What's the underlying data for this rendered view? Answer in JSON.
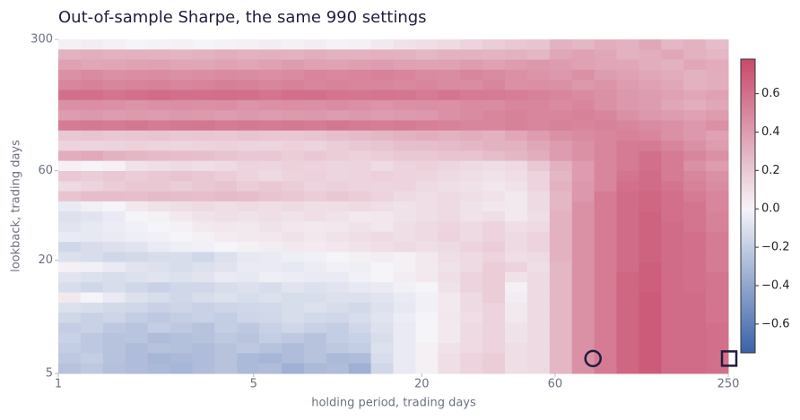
{
  "chart_data": {
    "type": "heatmap",
    "title": "Out-of-sample Sharpe, the same 990 settings",
    "x_label": "holding period, trading days",
    "y_label": "lookback, trading days",
    "xlim": [
      1,
      250
    ],
    "ylim": [
      300,
      5
    ],
    "log_x": true,
    "log_y": true,
    "xticks": [
      1,
      5,
      20,
      60,
      250
    ],
    "yticks": [
      5,
      20,
      60,
      300
    ],
    "zlim": [
      -0.75,
      0.78
    ],
    "cmap": [
      "#3a62a8",
      "#f5f4f8",
      "#c7496a"
    ],
    "colorbar_ticks": [
      {
        "value": -0.6,
        "label": "−0.6"
      },
      {
        "value": -0.4,
        "label": "−0.4"
      },
      {
        "value": -0.2,
        "label": "−0.2"
      },
      {
        "value": 0,
        "label": "0.0"
      },
      {
        "value": 0.2,
        "label": "0.2"
      },
      {
        "value": 0.4,
        "label": "0.4"
      },
      {
        "value": 0.6,
        "label": "0.6"
      }
    ],
    "markers": [
      {
        "x": 82,
        "y": 6,
        "shape": "circle",
        "color": "#1e1e3c"
      },
      {
        "x": 250,
        "y": 6,
        "shape": "square",
        "color": "#1e1e3c"
      }
    ],
    "z": [
      [
        0.02,
        0.03,
        0.02,
        0.0,
        0.01,
        0.02,
        0.0,
        0.01,
        0.02,
        0.03,
        0.02,
        0.03,
        0.01,
        0.02,
        0.05,
        0.08,
        0.1,
        0.12,
        0.15,
        0.18,
        0.2,
        0.22,
        0.3,
        0.28,
        0.32,
        0.3,
        0.35,
        0.28,
        0.3,
        0.25
      ],
      [
        0.3,
        0.32,
        0.3,
        0.31,
        0.3,
        0.29,
        0.3,
        0.32,
        0.3,
        0.31,
        0.3,
        0.32,
        0.3,
        0.3,
        0.31,
        0.3,
        0.28,
        0.3,
        0.3,
        0.29,
        0.3,
        0.28,
        0.35,
        0.38,
        0.35,
        0.3,
        0.32,
        0.35,
        0.3,
        0.28
      ],
      [
        0.38,
        0.35,
        0.36,
        0.37,
        0.38,
        0.36,
        0.35,
        0.37,
        0.36,
        0.38,
        0.4,
        0.38,
        0.37,
        0.39,
        0.4,
        0.38,
        0.37,
        0.38,
        0.4,
        0.38,
        0.4,
        0.42,
        0.4,
        0.38,
        0.36,
        0.35,
        0.32,
        0.3,
        0.35,
        0.33
      ],
      [
        0.45,
        0.48,
        0.45,
        0.46,
        0.47,
        0.45,
        0.46,
        0.48,
        0.47,
        0.46,
        0.48,
        0.5,
        0.49,
        0.5,
        0.52,
        0.5,
        0.48,
        0.47,
        0.5,
        0.48,
        0.45,
        0.44,
        0.42,
        0.45,
        0.4,
        0.38,
        0.35,
        0.33,
        0.3,
        0.32
      ],
      [
        0.5,
        0.52,
        0.5,
        0.51,
        0.52,
        0.5,
        0.51,
        0.53,
        0.52,
        0.5,
        0.52,
        0.5,
        0.51,
        0.5,
        0.5,
        0.49,
        0.5,
        0.48,
        0.47,
        0.5,
        0.45,
        0.46,
        0.45,
        0.42,
        0.44,
        0.4,
        0.38,
        0.35,
        0.3,
        0.32
      ],
      [
        0.6,
        0.6,
        0.58,
        0.6,
        0.62,
        0.6,
        0.6,
        0.61,
        0.6,
        0.58,
        0.6,
        0.6,
        0.58,
        0.57,
        0.58,
        0.57,
        0.55,
        0.58,
        0.55,
        0.55,
        0.54,
        0.52,
        0.5,
        0.48,
        0.45,
        0.42,
        0.4,
        0.38,
        0.35,
        0.38
      ],
      [
        0.45,
        0.46,
        0.45,
        0.44,
        0.45,
        0.46,
        0.45,
        0.46,
        0.44,
        0.45,
        0.46,
        0.45,
        0.47,
        0.45,
        0.44,
        0.45,
        0.46,
        0.45,
        0.48,
        0.47,
        0.5,
        0.5,
        0.48,
        0.5,
        0.45,
        0.42,
        0.4,
        0.35,
        0.32,
        0.35
      ],
      [
        0.4,
        0.42,
        0.4,
        0.41,
        0.4,
        0.42,
        0.41,
        0.4,
        0.42,
        0.4,
        0.41,
        0.42,
        0.4,
        0.42,
        0.4,
        0.41,
        0.42,
        0.45,
        0.48,
        0.5,
        0.52,
        0.5,
        0.5,
        0.52,
        0.5,
        0.45,
        0.42,
        0.4,
        0.38,
        0.4
      ],
      [
        0.55,
        0.56,
        0.55,
        0.57,
        0.55,
        0.56,
        0.57,
        0.55,
        0.56,
        0.55,
        0.56,
        0.55,
        0.57,
        0.55,
        0.54,
        0.55,
        0.53,
        0.52,
        0.5,
        0.5,
        0.52,
        0.5,
        0.52,
        0.5,
        0.52,
        0.5,
        0.48,
        0.45,
        0.42,
        0.45
      ],
      [
        0.2,
        0.22,
        0.2,
        0.21,
        0.22,
        0.2,
        0.21,
        0.2,
        0.22,
        0.21,
        0.2,
        0.22,
        0.24,
        0.26,
        0.28,
        0.3,
        0.32,
        0.3,
        0.32,
        0.3,
        0.35,
        0.4,
        0.45,
        0.48,
        0.5,
        0.52,
        0.5,
        0.45,
        0.42,
        0.38
      ],
      [
        0.15,
        0.14,
        0.15,
        0.16,
        0.15,
        0.14,
        0.15,
        0.16,
        0.15,
        0.14,
        0.16,
        0.15,
        0.18,
        0.2,
        0.22,
        0.24,
        0.25,
        0.26,
        0.28,
        0.3,
        0.3,
        0.35,
        0.4,
        0.45,
        0.5,
        0.55,
        0.55,
        0.5,
        0.45,
        0.4
      ],
      [
        0.32,
        0.34,
        0.3,
        0.28,
        0.26,
        0.25,
        0.24,
        0.22,
        0.2,
        0.2,
        0.18,
        0.2,
        0.18,
        0.16,
        0.18,
        0.2,
        0.2,
        0.22,
        0.22,
        0.25,
        0.28,
        0.32,
        0.4,
        0.45,
        0.5,
        0.55,
        0.6,
        0.55,
        0.5,
        0.45
      ],
      [
        0.02,
        0.0,
        0.02,
        0.08,
        0.1,
        0.12,
        0.1,
        0.12,
        0.15,
        0.14,
        0.16,
        0.15,
        0.14,
        0.15,
        0.12,
        0.15,
        0.16,
        0.14,
        0.12,
        0.1,
        0.12,
        0.2,
        0.3,
        0.4,
        0.5,
        0.55,
        0.6,
        0.55,
        0.45,
        0.4
      ],
      [
        0.2,
        0.18,
        0.2,
        0.18,
        0.2,
        0.22,
        0.2,
        0.18,
        0.15,
        0.12,
        0.15,
        0.16,
        0.14,
        0.15,
        0.16,
        0.15,
        0.14,
        0.12,
        0.1,
        0.08,
        0.1,
        0.15,
        0.28,
        0.4,
        0.5,
        0.58,
        0.62,
        0.55,
        0.5,
        0.45
      ],
      [
        0.12,
        0.15,
        0.18,
        0.2,
        0.2,
        0.18,
        0.2,
        0.22,
        0.18,
        0.2,
        0.18,
        0.15,
        0.16,
        0.15,
        0.14,
        0.15,
        0.12,
        0.1,
        0.08,
        0.06,
        0.08,
        0.15,
        0.3,
        0.42,
        0.5,
        0.6,
        0.62,
        0.58,
        0.52,
        0.48
      ],
      [
        0.22,
        0.25,
        0.25,
        0.24,
        0.26,
        0.25,
        0.24,
        0.26,
        0.25,
        0.22,
        0.2,
        0.18,
        0.2,
        0.18,
        0.15,
        0.12,
        0.1,
        0.12,
        0.1,
        0.08,
        0.05,
        0.12,
        0.28,
        0.42,
        0.55,
        0.62,
        0.65,
        0.6,
        0.55,
        0.5
      ],
      [
        -0.05,
        -0.02,
        0.0,
        0.05,
        0.08,
        0.1,
        0.12,
        0.1,
        0.12,
        0.1,
        0.12,
        0.1,
        0.1,
        0.12,
        0.1,
        0.08,
        0.1,
        0.12,
        0.08,
        0.06,
        0.05,
        0.12,
        0.28,
        0.45,
        0.55,
        0.62,
        0.65,
        0.6,
        0.58,
        0.5
      ],
      [
        -0.1,
        -0.08,
        -0.05,
        0.0,
        0.02,
        0.05,
        0.08,
        0.1,
        0.08,
        0.1,
        0.08,
        0.1,
        0.08,
        0.05,
        0.06,
        0.08,
        0.1,
        0.12,
        0.08,
        0.1,
        0.05,
        0.1,
        0.3,
        0.45,
        0.55,
        0.62,
        0.66,
        0.6,
        0.58,
        0.52
      ],
      [
        -0.08,
        -0.06,
        -0.04,
        -0.02,
        0.0,
        0.02,
        0.05,
        0.06,
        0.05,
        0.08,
        0.06,
        0.05,
        0.06,
        0.08,
        0.06,
        0.1,
        0.12,
        0.14,
        0.12,
        0.15,
        0.1,
        0.12,
        0.3,
        0.45,
        0.55,
        0.62,
        0.66,
        0.62,
        0.58,
        0.52
      ],
      [
        -0.05,
        -0.06,
        -0.05,
        -0.03,
        -0.02,
        0.0,
        0.02,
        0.04,
        0.05,
        0.06,
        0.08,
        0.06,
        0.08,
        0.1,
        0.12,
        0.1,
        0.12,
        0.15,
        0.12,
        0.15,
        0.12,
        0.15,
        0.3,
        0.45,
        0.55,
        0.62,
        0.66,
        0.62,
        0.6,
        0.55
      ],
      [
        -0.15,
        -0.12,
        -0.1,
        -0.08,
        -0.05,
        -0.03,
        -0.02,
        0.0,
        0.02,
        0.03,
        0.05,
        0.04,
        0.06,
        0.08,
        0.1,
        0.12,
        0.1,
        0.12,
        0.15,
        0.18,
        0.12,
        0.15,
        0.3,
        0.45,
        0.55,
        0.62,
        0.66,
        0.62,
        0.6,
        0.55
      ],
      [
        -0.1,
        -0.12,
        -0.15,
        -0.14,
        -0.12,
        -0.12,
        -0.15,
        -0.1,
        -0.06,
        -0.05,
        -0.03,
        -0.02,
        0.0,
        0.02,
        0.03,
        0.02,
        0.05,
        0.1,
        0.12,
        0.15,
        0.1,
        0.12,
        0.3,
        0.45,
        0.55,
        0.62,
        0.66,
        0.62,
        0.6,
        0.55
      ],
      [
        0.02,
        -0.02,
        -0.05,
        -0.08,
        -0.1,
        -0.12,
        -0.1,
        -0.08,
        -0.05,
        -0.05,
        -0.06,
        -0.04,
        -0.02,
        -0.03,
        0.0,
        0.02,
        0.05,
        0.08,
        0.12,
        0.18,
        0.15,
        0.1,
        0.28,
        0.45,
        0.55,
        0.62,
        0.68,
        0.62,
        0.6,
        0.55
      ],
      [
        -0.08,
        -0.1,
        -0.12,
        -0.1,
        -0.08,
        -0.1,
        -0.08,
        -0.05,
        -0.06,
        -0.03,
        -0.04,
        -0.05,
        -0.05,
        -0.02,
        0.0,
        0.03,
        0.05,
        0.1,
        0.15,
        0.18,
        0.08,
        0.12,
        0.28,
        0.45,
        0.55,
        0.65,
        0.68,
        0.62,
        0.6,
        0.58
      ],
      [
        -0.12,
        -0.15,
        -0.12,
        -0.15,
        -0.18,
        -0.15,
        -0.15,
        -0.12,
        -0.1,
        -0.12,
        -0.08,
        -0.1,
        -0.08,
        -0.06,
        -0.05,
        -0.02,
        0.0,
        0.08,
        0.15,
        0.18,
        0.02,
        0.12,
        0.28,
        0.45,
        0.55,
        0.65,
        0.68,
        0.62,
        0.6,
        0.58
      ],
      [
        0.05,
        0.0,
        -0.05,
        -0.1,
        -0.12,
        -0.15,
        -0.12,
        -0.1,
        -0.12,
        -0.1,
        -0.12,
        -0.12,
        -0.1,
        -0.1,
        -0.08,
        -0.05,
        -0.02,
        0.05,
        0.12,
        0.18,
        0.03,
        0.12,
        0.28,
        0.45,
        0.55,
        0.65,
        0.7,
        0.62,
        0.62,
        0.58
      ],
      [
        -0.1,
        -0.12,
        -0.14,
        -0.15,
        -0.18,
        -0.16,
        -0.18,
        -0.16,
        -0.15,
        -0.14,
        -0.12,
        -0.1,
        -0.12,
        -0.14,
        -0.1,
        -0.06,
        -0.02,
        0.05,
        0.12,
        0.15,
        0.05,
        0.12,
        0.28,
        0.45,
        0.55,
        0.65,
        0.7,
        0.62,
        0.62,
        0.58
      ],
      [
        -0.15,
        -0.18,
        -0.16,
        -0.2,
        -0.22,
        -0.2,
        -0.18,
        -0.2,
        -0.16,
        -0.15,
        -0.12,
        -0.14,
        -0.15,
        -0.12,
        -0.08,
        -0.04,
        0.0,
        0.06,
        0.1,
        0.15,
        0.05,
        0.12,
        0.28,
        0.45,
        0.55,
        0.65,
        0.7,
        0.62,
        0.62,
        0.58
      ],
      [
        -0.2,
        -0.18,
        -0.22,
        -0.24,
        -0.2,
        -0.22,
        -0.25,
        -0.2,
        -0.22,
        -0.18,
        -0.15,
        -0.18,
        -0.2,
        -0.15,
        -0.1,
        -0.05,
        0.0,
        0.05,
        0.12,
        0.15,
        0.08,
        0.12,
        0.28,
        0.45,
        0.55,
        0.65,
        0.7,
        0.62,
        0.62,
        0.6
      ],
      [
        -0.18,
        -0.22,
        -0.25,
        -0.24,
        -0.28,
        -0.26,
        -0.25,
        -0.22,
        -0.24,
        -0.2,
        -0.22,
        -0.25,
        -0.2,
        -0.18,
        -0.12,
        -0.05,
        0.0,
        0.05,
        0.12,
        0.15,
        0.08,
        0.12,
        0.28,
        0.45,
        0.55,
        0.65,
        0.7,
        0.62,
        0.62,
        0.6
      ],
      [
        -0.2,
        -0.22,
        -0.25,
        -0.28,
        -0.25,
        -0.26,
        -0.28,
        -0.25,
        -0.22,
        -0.25,
        -0.28,
        -0.25,
        -0.22,
        -0.2,
        -0.1,
        -0.05,
        0.02,
        0.08,
        0.12,
        0.15,
        0.1,
        0.12,
        0.28,
        0.45,
        0.55,
        0.65,
        0.7,
        0.62,
        0.62,
        0.6
      ],
      [
        -0.22,
        -0.2,
        -0.25,
        -0.28,
        -0.32,
        -0.3,
        -0.28,
        -0.25,
        -0.3,
        -0.32,
        -0.28,
        -0.25,
        -0.3,
        -0.28,
        -0.12,
        -0.05,
        0.02,
        0.1,
        0.15,
        0.18,
        0.1,
        0.12,
        0.28,
        0.45,
        0.55,
        0.65,
        0.7,
        0.62,
        0.62,
        0.6
      ],
      [
        -0.25,
        -0.22,
        -0.26,
        -0.28,
        -0.3,
        -0.32,
        -0.28,
        -0.25,
        -0.3,
        -0.28,
        -0.35,
        -0.3,
        -0.28,
        -0.35,
        -0.15,
        -0.05,
        0.02,
        0.1,
        0.15,
        0.18,
        0.1,
        0.12,
        0.28,
        0.45,
        0.55,
        0.65,
        0.7,
        0.62,
        0.62,
        0.6
      ]
    ]
  }
}
